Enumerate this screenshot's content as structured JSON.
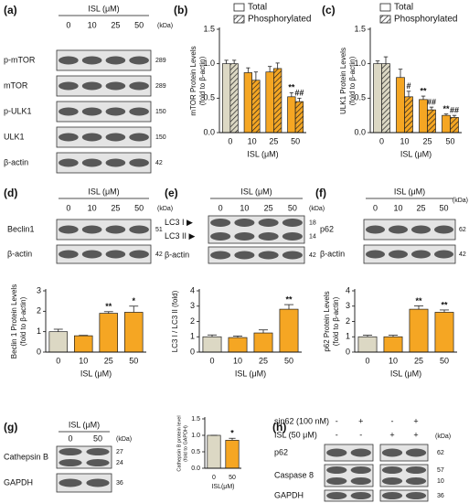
{
  "blots": {
    "a": {
      "label": "(a)",
      "treatment": "ISL (μM)",
      "lanes": [
        "0",
        "10",
        "25",
        "50"
      ],
      "kda_header": "(kDa)",
      "rows": [
        {
          "labels": [
            "p-mTOR"
          ],
          "kda": [
            289
          ]
        },
        {
          "labels": [
            "mTOR"
          ],
          "kda": [
            289
          ]
        },
        {
          "labels": [
            "p-ULK1"
          ],
          "kda": [
            150
          ]
        },
        {
          "labels": [
            "ULK1"
          ],
          "kda": [
            150
          ]
        },
        {
          "labels": [
            "β-actin"
          ],
          "kda": [
            42
          ]
        }
      ]
    },
    "d": {
      "label": "(d)",
      "treatment": "ISL (μM)",
      "lanes": [
        "0",
        "10",
        "25",
        "50"
      ],
      "kda_header": "(kDa)",
      "rows": [
        {
          "labels": [
            "Beclin1"
          ],
          "kda": [
            51
          ]
        },
        {
          "labels": [
            "β-actin"
          ],
          "kda": [
            42
          ]
        }
      ]
    },
    "e": {
      "label": "(e)",
      "treatment": "ISL (μM)",
      "lanes": [
        "0",
        "10",
        "25",
        "50"
      ],
      "kda_header": "(kDa)",
      "rows": [
        {
          "labels": [
            "LC3 I ▶",
            "LC3 II ▶"
          ],
          "kda": [
            18,
            14
          ]
        },
        {
          "labels": [
            "β-actin"
          ],
          "kda": [
            42
          ]
        }
      ]
    },
    "f": {
      "label": "(f)",
      "treatment": "ISL (μM)",
      "lanes": [
        "0",
        "10",
        "25",
        "50"
      ],
      "kda_header": "(kDa)",
      "rows": [
        {
          "labels": [
            "p62"
          ],
          "kda": [
            62
          ]
        },
        {
          "labels": [
            "β-actin"
          ],
          "kda": [
            42
          ]
        }
      ]
    },
    "g": {
      "label": "(g)",
      "treatment": "ISL (μM)",
      "lanes": [
        "0",
        "50"
      ],
      "kda_header": "(kDa)",
      "rows": [
        {
          "labels": [
            "Cathepsin B"
          ],
          "kda": [
            27,
            24
          ]
        },
        {
          "labels": [
            "GAPDH"
          ],
          "kda": [
            36
          ]
        }
      ]
    },
    "h": {
      "label": "(h)",
      "kda_header": "(kDa)",
      "conditions": [
        {
          "name": "sip62 (100 nM)",
          "signs": [
            "-",
            "+",
            "-",
            "+"
          ]
        },
        {
          "name": "ISL (50 μM)",
          "signs": [
            "-",
            "-",
            "+",
            "+"
          ]
        }
      ],
      "rows": [
        {
          "labels": [
            "p62"
          ],
          "kda": [
            62
          ]
        },
        {
          "labels": [
            "Caspase 8"
          ],
          "kda": [
            57,
            10
          ]
        },
        {
          "labels": [
            "GAPDH"
          ],
          "kda": [
            36
          ]
        }
      ]
    }
  },
  "chart_data": [
    {
      "type": "bar",
      "panel": "(b)",
      "ylabel": [
        "mTOR Protein Levels",
        "(fold to β-actin)"
      ],
      "xlabel": "ISL (μM)",
      "categories": [
        "0",
        "10",
        "25",
        "50"
      ],
      "colors": [
        "#dcd8c4",
        "#f5a623",
        "#f5a623",
        "#f5a623"
      ],
      "series": [
        {
          "name": "Total",
          "pattern": "solid",
          "values": [
            1.0,
            0.87,
            0.88,
            0.52
          ],
          "errors": [
            0.05,
            0.07,
            0.08,
            0.06
          ]
        },
        {
          "name": "Phosphorylated",
          "pattern": "hatch",
          "values": [
            1.0,
            0.76,
            0.93,
            0.45
          ],
          "errors": [
            0.05,
            0.12,
            0.08,
            0.05
          ]
        }
      ],
      "ylim": [
        0,
        1.5
      ],
      "yticks": [
        {
          "value": 0,
          "label": "0.0"
        },
        0.5,
        {
          "value": 1,
          "label": "1.0"
        },
        1.5
      ],
      "annotations": [
        {
          "text": "**",
          "series": 0,
          "index": 3
        },
        {
          "text": "##",
          "series": 1,
          "index": 3
        }
      ]
    },
    {
      "type": "bar",
      "panel": "(c)",
      "ylabel": [
        "ULK1 Protein Levels",
        "(fold to β-actin)"
      ],
      "xlabel": "ISL (μM)",
      "categories": [
        "0",
        "10",
        "25",
        "50"
      ],
      "colors": [
        "#dcd8c4",
        "#f5a623",
        "#f5a623",
        "#f5a623"
      ],
      "series": [
        {
          "name": "Total",
          "pattern": "solid",
          "values": [
            1.0,
            0.8,
            0.48,
            0.25
          ],
          "errors": [
            0.04,
            0.12,
            0.05,
            0.02
          ]
        },
        {
          "name": "Phosphorylated",
          "pattern": "hatch",
          "values": [
            1.0,
            0.52,
            0.33,
            0.22
          ],
          "errors": [
            0.1,
            0.08,
            0.04,
            0.03
          ]
        }
      ],
      "ylim": [
        0,
        1.5
      ],
      "yticks": [
        {
          "value": 0,
          "label": "0.0"
        },
        0.5,
        {
          "value": 1,
          "label": "1.0"
        },
        1.5
      ],
      "annotations": [
        {
          "text": "#",
          "series": 1,
          "index": 1
        },
        {
          "text": "**",
          "series": 0,
          "index": 2
        },
        {
          "text": "##",
          "series": 1,
          "index": 2
        },
        {
          "text": "**",
          "series": 0,
          "index": 3
        },
        {
          "text": "##",
          "series": 1,
          "index": 3
        }
      ]
    },
    {
      "type": "bar",
      "ylabel": [
        "Beclin 1 Protein Levels",
        "(fold to β-actin)"
      ],
      "xlabel": "ISL (μM)",
      "categories": [
        "0",
        "10",
        "25",
        "50"
      ],
      "colors": [
        "#dcd8c4",
        "#f5a623",
        "#f5a623",
        "#f5a623"
      ],
      "values": [
        1.0,
        0.8,
        1.9,
        1.95
      ],
      "errors": [
        0.12,
        0.02,
        0.08,
        0.3
      ],
      "ylim": [
        0,
        3
      ],
      "yticks": [
        0,
        1,
        2,
        3
      ],
      "annotations": [
        {
          "text": "**",
          "index": 2
        },
        {
          "text": "*",
          "index": 3
        }
      ]
    },
    {
      "type": "bar",
      "ylabel": [
        "LC3 I / LC3 II (fold)"
      ],
      "xlabel": "ISL (μM)",
      "categories": [
        "0",
        "10",
        "25",
        "50"
      ],
      "colors": [
        "#dcd8c4",
        "#f5a623",
        "#f5a623",
        "#f5a623"
      ],
      "values": [
        1.0,
        0.95,
        1.25,
        2.8
      ],
      "errors": [
        0.12,
        0.1,
        0.2,
        0.3
      ],
      "ylim": [
        0,
        4
      ],
      "yticks": [
        0,
        1,
        2,
        3,
        4
      ],
      "annotations": [
        {
          "text": "**",
          "index": 3
        }
      ]
    },
    {
      "type": "bar",
      "ylabel": [
        "p62 Protein Levels",
        "(fold to β-actin)"
      ],
      "xlabel": "ISL (μM)",
      "categories": [
        "0",
        "10",
        "25",
        "50"
      ],
      "colors": [
        "#dcd8c4",
        "#f5a623",
        "#f5a623",
        "#f5a623"
      ],
      "values": [
        1.0,
        1.0,
        2.8,
        2.6
      ],
      "errors": [
        0.1,
        0.1,
        0.22,
        0.15
      ],
      "ylim": [
        0,
        4
      ],
      "yticks": [
        0,
        1,
        2,
        3,
        4
      ],
      "annotations": [
        {
          "text": "**",
          "index": 2
        },
        {
          "text": "**",
          "index": 3
        }
      ]
    },
    {
      "type": "bar",
      "ylabel": [
        "Cathepsin B protein level",
        "(fold to GAPDH)"
      ],
      "xlabel": "ISL(μM)",
      "categories": [
        "0",
        "50"
      ],
      "colors": [
        "#dcd8c4",
        "#f5a623"
      ],
      "values": [
        1.0,
        0.85
      ],
      "errors": [
        0.0,
        0.06
      ],
      "ylim": [
        0,
        1.5
      ],
      "yticks": [
        {
          "value": 0,
          "label": "0.0"
        },
        0.5,
        {
          "value": 1,
          "label": "1.0"
        },
        1.5
      ],
      "annotations": [
        {
          "text": "*",
          "index": 1
        }
      ]
    }
  ]
}
